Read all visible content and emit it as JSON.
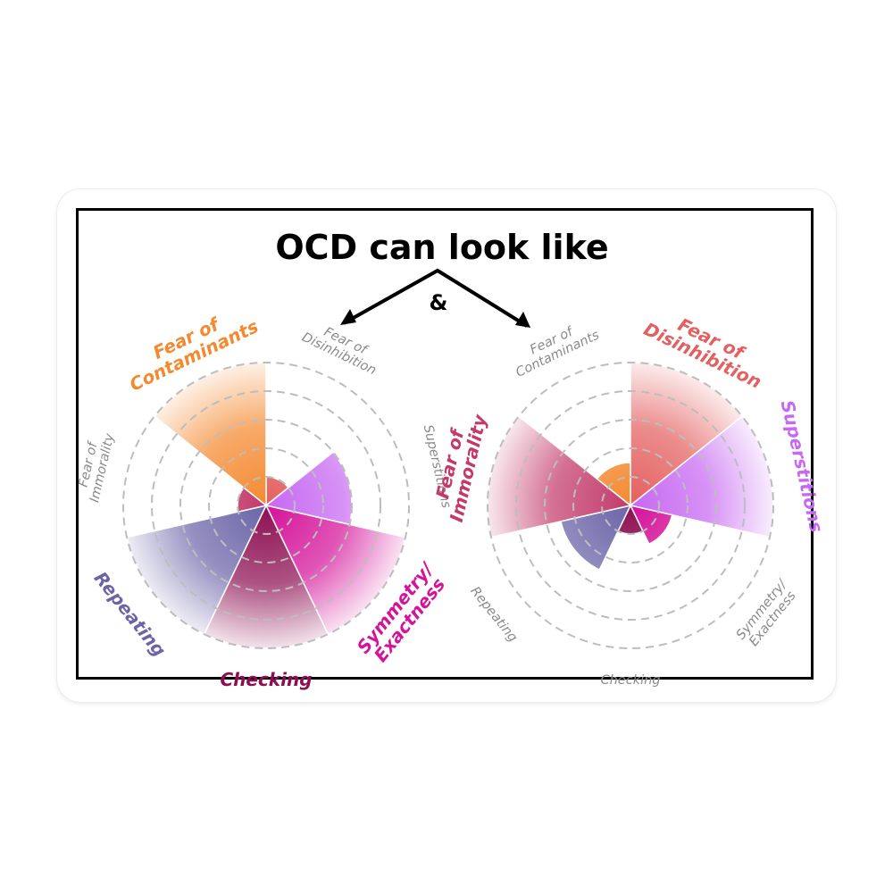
{
  "header": {
    "title": "OCD can look like",
    "ampersand": "&"
  },
  "colors": {
    "fear_of_contaminants": "#f4892f",
    "fear_of_disinhibition": "#e45f5f",
    "superstitions": "#c768f2",
    "symmetry_exactness": "#d4129a",
    "checking": "#8d0f52",
    "repeating": "#6b64a8",
    "fear_of_immorality": "#c33a6a",
    "ring": "#bdbdbd",
    "muted_label": "#8a8a8a"
  },
  "chart_data": [
    {
      "type": "polar-area",
      "rings": 5,
      "rmax": 5,
      "categories": [
        {
          "lines": [
            "Fear of",
            "Disinhibition"
          ],
          "value": 1,
          "color": "#e45f5f",
          "highlight": false
        },
        {
          "lines": [
            "Superstitions"
          ],
          "value": 3,
          "color": "#c768f2",
          "highlight": false
        },
        {
          "lines": [
            "Symmetry/",
            "Exactness"
          ],
          "value": 5,
          "color": "#d4129a",
          "highlight": true
        },
        {
          "lines": [
            "Checking"
          ],
          "value": 5,
          "color": "#8d0f52",
          "highlight": true
        },
        {
          "lines": [
            "Repeating"
          ],
          "value": 5,
          "color": "#6b64a8",
          "highlight": true
        },
        {
          "lines": [
            "Fear of",
            "Immorality"
          ],
          "value": 1,
          "color": "#c33a6a",
          "highlight": false
        },
        {
          "lines": [
            "Fear of",
            "Contaminants"
          ],
          "value": 5,
          "color": "#f4892f",
          "highlight": true
        }
      ]
    },
    {
      "type": "polar-area",
      "rings": 5,
      "rmax": 5,
      "categories": [
        {
          "lines": [
            "Fear of",
            "Disinhibition"
          ],
          "value": 5,
          "color": "#e45f5f",
          "highlight": true
        },
        {
          "lines": [
            "Superstitions"
          ],
          "value": 5,
          "color": "#c768f2",
          "highlight": true
        },
        {
          "lines": [
            "Symmetry/",
            "Exactness"
          ],
          "value": 1.5,
          "color": "#d4129a",
          "highlight": false
        },
        {
          "lines": [
            "Checking"
          ],
          "value": 1,
          "color": "#8d0f52",
          "highlight": false
        },
        {
          "lines": [
            "Repeating"
          ],
          "value": 2.5,
          "color": "#6b64a8",
          "highlight": false
        },
        {
          "lines": [
            "Fear of",
            "Immorality"
          ],
          "value": 5,
          "color": "#c33a6a",
          "highlight": true
        },
        {
          "lines": [
            "Fear of",
            "Contaminants"
          ],
          "value": 1.5,
          "color": "#f4892f",
          "highlight": false
        }
      ]
    }
  ]
}
